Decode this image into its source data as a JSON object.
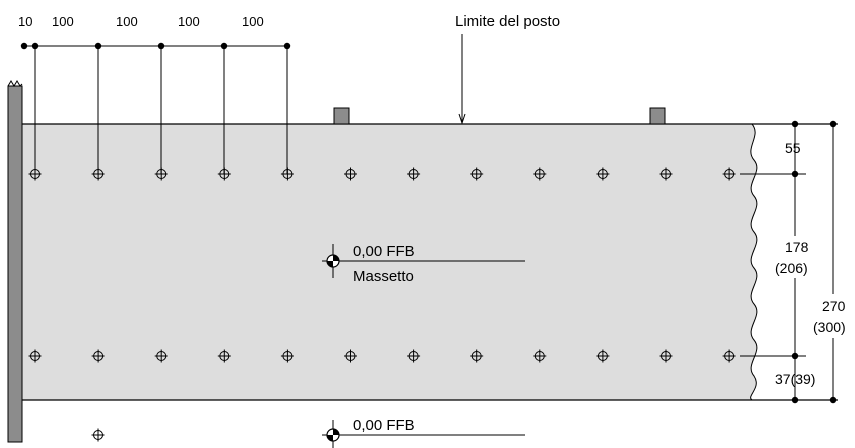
{
  "title_label": "Limite del posto",
  "top_dimensions": [
    "10",
    "100",
    "100",
    "100",
    "100"
  ],
  "right_dimensions": {
    "d55": "55",
    "d178": "178",
    "d178_alt": "(206)",
    "d270": "270",
    "d270_alt": "(300)",
    "d37": "37(39)"
  },
  "level_marker_1": {
    "value": "0,00 FFB",
    "caption": "Massetto"
  },
  "level_marker_2": {
    "value": "0,00 FFB"
  },
  "colors": {
    "slab_fill": "#dddddd",
    "wall_fill": "#8c8c8c",
    "post_fill": "#8c8c8c",
    "line": "#000000"
  },
  "anchor_rows": {
    "upper_count": 12,
    "lower_count": 12,
    "below_slab_count": 1
  }
}
